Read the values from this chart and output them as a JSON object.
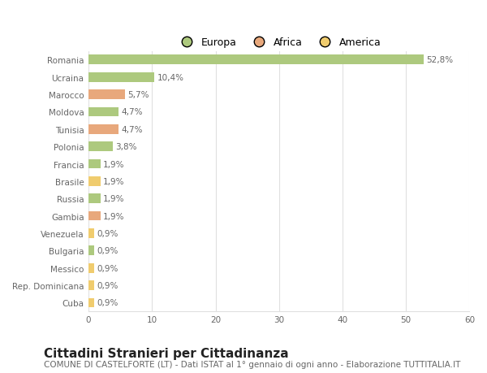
{
  "countries": [
    "Romania",
    "Ucraina",
    "Marocco",
    "Moldova",
    "Tunisia",
    "Polonia",
    "Francia",
    "Brasile",
    "Russia",
    "Gambia",
    "Venezuela",
    "Bulgaria",
    "Messico",
    "Rep. Dominicana",
    "Cuba"
  ],
  "values": [
    52.8,
    10.4,
    5.7,
    4.7,
    4.7,
    3.8,
    1.9,
    1.9,
    1.9,
    1.9,
    0.9,
    0.9,
    0.9,
    0.9,
    0.9
  ],
  "labels": [
    "52,8%",
    "10,4%",
    "5,7%",
    "4,7%",
    "4,7%",
    "3,8%",
    "1,9%",
    "1,9%",
    "1,9%",
    "1,9%",
    "0,9%",
    "0,9%",
    "0,9%",
    "0,9%",
    "0,9%"
  ],
  "continents": [
    "Europa",
    "Europa",
    "Africa",
    "Europa",
    "Africa",
    "Europa",
    "Europa",
    "America",
    "Europa",
    "Africa",
    "America",
    "Europa",
    "America",
    "America",
    "America"
  ],
  "colors": {
    "Europa": "#adc97e",
    "Africa": "#e8a87c",
    "America": "#f0cc6e"
  },
  "xlim": [
    0,
    60
  ],
  "xticks": [
    0,
    10,
    20,
    30,
    40,
    50,
    60
  ],
  "background_color": "#ffffff",
  "grid_color": "#e0e0e0",
  "title": "Cittadini Stranieri per Cittadinanza",
  "subtitle": "COMUNE DI CASTELFORTE (LT) - Dati ISTAT al 1° gennaio di ogni anno - Elaborazione TUTTITALIA.IT",
  "title_fontsize": 11,
  "subtitle_fontsize": 7.5,
  "label_fontsize": 7.5,
  "tick_fontsize": 7.5,
  "bar_height": 0.55,
  "legend_items": [
    "Europa",
    "Africa",
    "America"
  ],
  "legend_colors": [
    "#adc97e",
    "#e8a87c",
    "#f0cc6e"
  ]
}
